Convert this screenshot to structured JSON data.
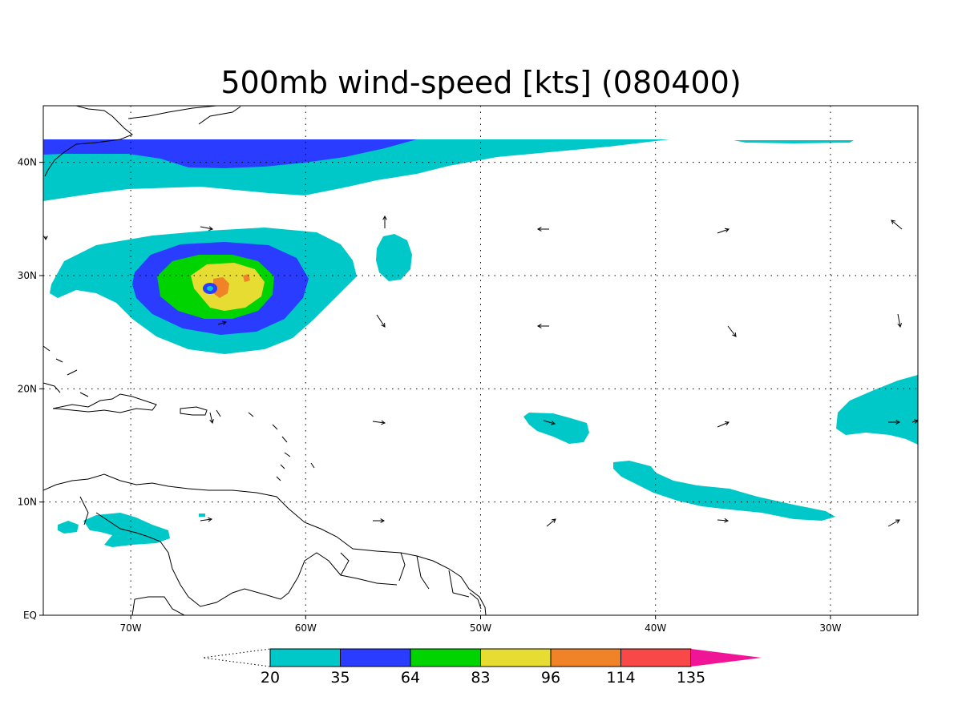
{
  "title": "500mb wind-speed [kts] (080400)",
  "map": {
    "lon_range": [
      -75,
      -25
    ],
    "lat_range": [
      0,
      45
    ],
    "lon_ticks": [
      {
        "lon": -70,
        "label": "70W"
      },
      {
        "lon": -60,
        "label": "60W"
      },
      {
        "lon": -50,
        "label": "50W"
      },
      {
        "lon": -40,
        "label": "40W"
      },
      {
        "lon": -30,
        "label": "30W"
      }
    ],
    "lat_ticks": [
      {
        "lat": 0,
        "label": "EQ"
      },
      {
        "lat": 10,
        "label": "10N"
      },
      {
        "lat": 20,
        "label": "20N"
      },
      {
        "lat": 30,
        "label": "30N"
      },
      {
        "lat": 40,
        "label": "40N"
      }
    ],
    "grid": true
  },
  "colorbar": {
    "levels": [
      {
        "label": "20",
        "color": "#00c8c8"
      },
      {
        "label": "35",
        "color": "#2a3cff"
      },
      {
        "label": "64",
        "color": "#00d400"
      },
      {
        "label": "83",
        "color": "#e6dc32"
      },
      {
        "label": "96",
        "color": "#f08228"
      },
      {
        "label": "114",
        "color": "#f84848"
      },
      {
        "label": "135",
        "color": "#f01496"
      }
    ],
    "low_color": "#ffffff",
    "high_color": "#f01496"
  }
}
